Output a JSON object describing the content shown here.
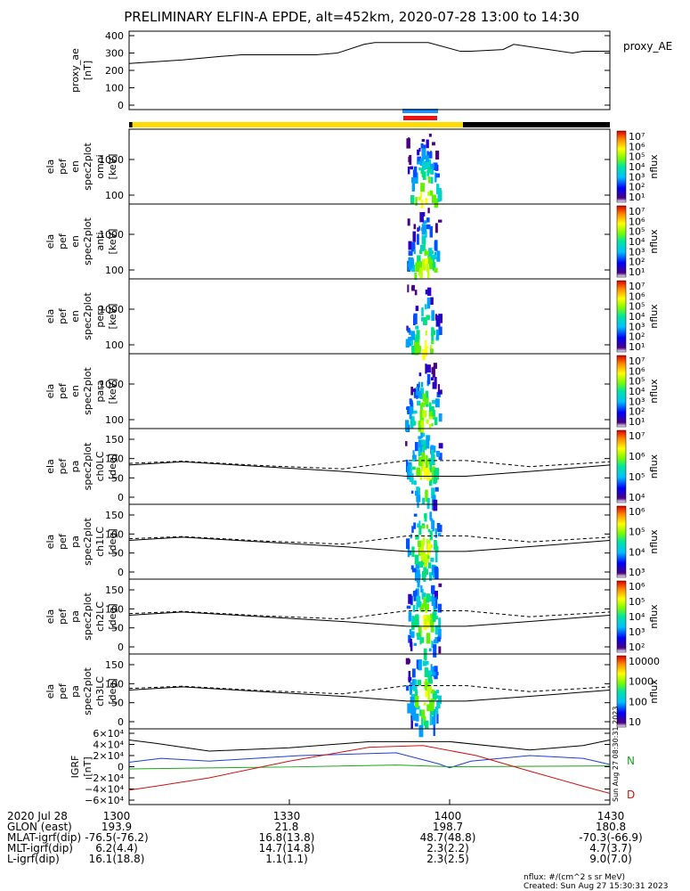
{
  "title": "PRELIMINARY ELFIN-A EPDE, alt=452km, 2020-07-28 13:00 to 14:30",
  "colors": {
    "frame": "#000000",
    "bar_yellow": "#ffdd00",
    "bar_black": "#000000",
    "bar_blue": "#1e90ff",
    "bar_red": "#ee1111",
    "grf_black": "#000000",
    "grf_blue": "#1f3fcf",
    "grf_green": "#1aa51a",
    "grf_red": "#d01010"
  },
  "colorbar_label": "nflux",
  "panels": [
    {
      "ylabel": [
        "proxy_ae",
        "[nT]"
      ],
      "yticks": [
        "400",
        "300",
        "200",
        "100",
        "0"
      ],
      "right_label": "proxy_AE"
    },
    {
      "ylabel": [
        "ela",
        "pef",
        "en",
        "spec2plot",
        "omni",
        "[keV]"
      ],
      "yticks": [
        "1000",
        "100"
      ],
      "cbar_ticks": [
        "10⁷",
        "10⁶",
        "10⁵",
        "10⁴",
        "10³",
        "10²",
        "10¹"
      ]
    },
    {
      "ylabel": [
        "ela",
        "pef",
        "en",
        "spec2plot",
        "anti",
        "[keV]"
      ],
      "yticks": [
        "1000",
        "100"
      ],
      "cbar_ticks": [
        "10⁷",
        "10⁶",
        "10⁵",
        "10⁴",
        "10³",
        "10²",
        "10¹"
      ]
    },
    {
      "ylabel": [
        "ela",
        "pef",
        "en",
        "spec2plot",
        "perp",
        "[keV]"
      ],
      "yticks": [
        "1000",
        "100"
      ],
      "cbar_ticks": [
        "10⁷",
        "10⁶",
        "10⁵",
        "10⁴",
        "10³",
        "10²",
        "10¹"
      ]
    },
    {
      "ylabel": [
        "ela",
        "pef",
        "en",
        "spec2plot",
        "para",
        "[keV]"
      ],
      "yticks": [
        "1000",
        "100"
      ],
      "cbar_ticks": [
        "10⁷",
        "10⁶",
        "10⁵",
        "10⁴",
        "10³",
        "10²",
        "10¹"
      ]
    },
    {
      "ylabel": [
        "ela",
        "pef",
        "pa",
        "spec2plot",
        "ch0LC",
        "[deg]"
      ],
      "yticks": [
        "150",
        "100",
        "50",
        "0"
      ],
      "cbar_ticks": [
        "10⁷",
        "10⁶",
        "10⁵",
        "10⁴"
      ]
    },
    {
      "ylabel": [
        "ela",
        "pef",
        "pa",
        "spec2plot",
        "ch1LC",
        "[deg]"
      ],
      "yticks": [
        "150",
        "100",
        "50",
        "0"
      ],
      "cbar_ticks": [
        "10⁶",
        "10⁵",
        "10⁴",
        "10³"
      ]
    },
    {
      "ylabel": [
        "ela",
        "pef",
        "pa",
        "spec2plot",
        "ch2LC",
        "[deg]"
      ],
      "yticks": [
        "150",
        "100",
        "50",
        "0"
      ],
      "cbar_ticks": [
        "10⁶",
        "10⁵",
        "10⁴",
        "10³",
        "10²"
      ]
    },
    {
      "ylabel": [
        "ela",
        "pef",
        "pa",
        "spec2plot",
        "ch3LC",
        "[deg]"
      ],
      "yticks": [
        "150",
        "100",
        "50",
        "0"
      ],
      "cbar_ticks": [
        "10000",
        "1000",
        "100",
        "10"
      ]
    },
    {
      "ylabel": [
        "IGRF",
        "[nT]"
      ],
      "yticks": [
        "6×10⁴",
        "4×10⁴",
        "2×10⁴",
        "0",
        "−2×10⁴",
        "−4×10⁴",
        "−6×10⁴"
      ],
      "right_labels": [
        "N",
        "D"
      ]
    }
  ],
  "chart_data": {
    "type": "line",
    "x_ticks": [
      "1300",
      "1330",
      "1400",
      "1430"
    ],
    "proxy_ae": {
      "x_minutes": [
        0,
        10,
        17,
        21,
        35,
        39,
        44,
        46,
        56,
        62,
        64,
        70,
        72,
        83,
        85,
        90
      ],
      "y": [
        240,
        260,
        280,
        290,
        290,
        300,
        350,
        360,
        360,
        310,
        310,
        320,
        350,
        300,
        310,
        310
      ],
      "ylim": [
        0,
        400
      ]
    },
    "igrf": {
      "ylim": [
        -60000,
        60000
      ],
      "black": {
        "x": [
          0,
          5,
          15,
          30,
          45,
          60,
          75,
          85,
          90
        ],
        "y": [
          48000,
          42000,
          28000,
          34000,
          45000,
          45000,
          30000,
          38000,
          48000
        ]
      },
      "blue": {
        "x": [
          0,
          6,
          15,
          32,
          50,
          58,
          60,
          64,
          75,
          85,
          90
        ],
        "y": [
          8000,
          15000,
          10000,
          20000,
          25000,
          5000,
          -2000,
          10000,
          20000,
          15000,
          4000
        ]
      },
      "green": {
        "x": [
          0,
          30,
          50,
          60,
          90
        ],
        "y": [
          -4000,
          -500,
          3000,
          0,
          1500
        ]
      },
      "red": {
        "x": [
          0,
          5,
          15,
          30,
          45,
          55,
          65,
          75,
          85,
          90
        ],
        "y": [
          -42000,
          -35000,
          -20000,
          10000,
          35000,
          38000,
          20000,
          -8000,
          -35000,
          -48000
        ]
      }
    },
    "pa_loss_cone": {
      "x": [
        0,
        10,
        25,
        40,
        52,
        63,
        75,
        90
      ],
      "lc": [
        100,
        110,
        95,
        80,
        65,
        65,
        80,
        100
      ],
      "alc": [
        105,
        112,
        98,
        88,
        114,
        114,
        95,
        110
      ]
    },
    "ephemeris": {
      "labels": [
        "2020 Jul 28",
        "GLON (east)",
        "MLAT-igrf(dip)",
        "MLT-igrf(dip)",
        "L-igrf(dip)"
      ],
      "columns": [
        [
          "1300",
          "193.9",
          "-76.5(-76.2)",
          "6.2(4.4)",
          "16.1(18.8)"
        ],
        [
          "1330",
          "21.8",
          "16.8(13.8)",
          "14.7(14.8)",
          "1.1(1.1)"
        ],
        [
          "1400",
          "198.7",
          "48.7(48.8)",
          "2.3(2.2)",
          "2.3(2.5)"
        ],
        [
          "1430",
          "180.8",
          "-70.3(-66.9)",
          "4.7(3.7)",
          "9.0(7.0)"
        ]
      ]
    },
    "footer": {
      "units": "nflux: #/(cm^2 s sr MeV)",
      "created": "Created: Sun Aug 27 15:30:31 2023",
      "stamp": "Sun Aug 27 08:30:31 2023"
    }
  }
}
